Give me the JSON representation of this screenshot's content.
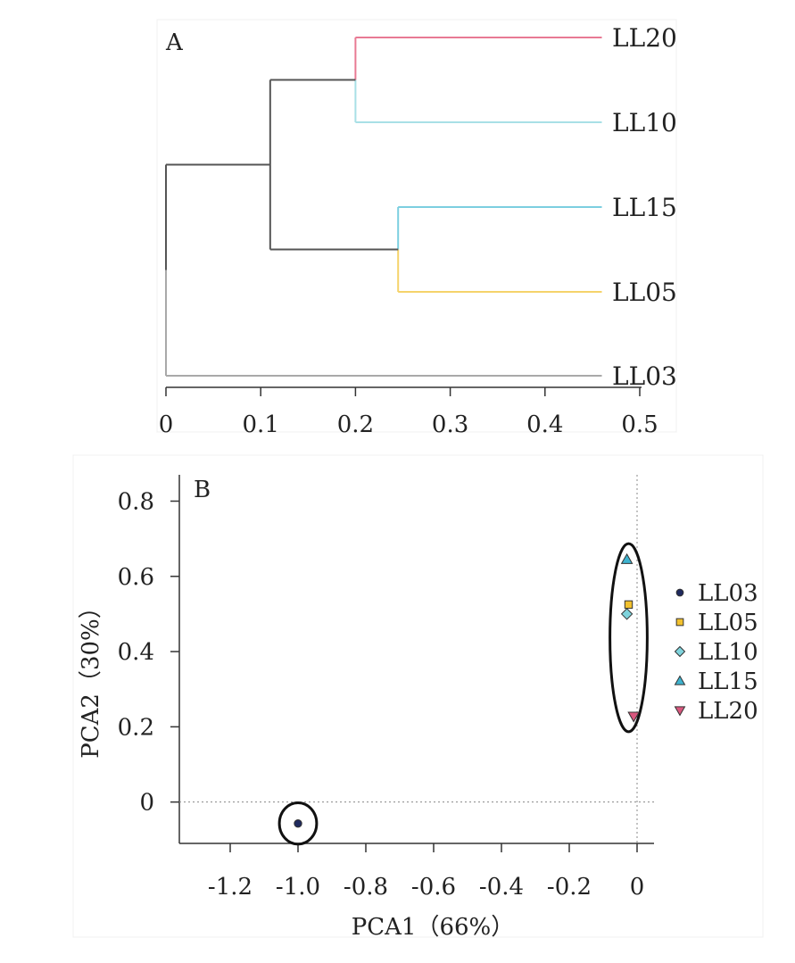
{
  "chart_data": [
    {
      "type": "dendrogram",
      "panel_label": "A",
      "leaves": [
        "LL20",
        "LL10",
        "LL15",
        "LL05",
        "LL03"
      ],
      "leaf_colors": [
        "#e87a94",
        "#a8e0e6",
        "#7ccfe0",
        "#f5d36b",
        "#a9a9a9"
      ],
      "merges": [
        {
          "id": "m1",
          "children": [
            "LL20",
            "LL10"
          ],
          "height": 0.2
        },
        {
          "id": "m2",
          "children": [
            "LL15",
            "LL05"
          ],
          "height": 0.245
        },
        {
          "id": "m3",
          "children": [
            "m1",
            "m2"
          ],
          "height": 0.11
        },
        {
          "id": "root",
          "children": [
            "m3",
            "LL03"
          ],
          "height": 0.0
        }
      ],
      "leaf_height": 0.46,
      "xlim": [
        0,
        0.5
      ],
      "xticks": [
        0,
        0.1,
        0.2,
        0.3,
        0.4,
        0.5
      ],
      "xtick_labels": [
        "0",
        "0.1",
        "0.2",
        "0.3",
        "0.4",
        "0.5"
      ]
    },
    {
      "type": "scatter",
      "panel_label": "B",
      "xlabel": "PCA1（66%）",
      "ylabel": "PCA2（30%）",
      "xlim": [
        -1.35,
        0.05
      ],
      "ylim": [
        -0.11,
        0.87
      ],
      "xticks": [
        -1.2,
        -1.0,
        -0.8,
        -0.6,
        -0.4,
        -0.2,
        0
      ],
      "xtick_labels": [
        "-1.2",
        "-1.0",
        "-0.8",
        "-0.6",
        "-0.4",
        "-0.2",
        "0"
      ],
      "yticks": [
        0,
        0.2,
        0.4,
        0.6,
        0.8
      ],
      "ytick_labels": [
        "0",
        "0.2",
        "0.4",
        "0.6",
        "0.8"
      ],
      "reference_lines": {
        "x": 0,
        "y": 0
      },
      "series": [
        {
          "name": "LL03",
          "marker": "circle",
          "color": "#1f2a5e",
          "points": [
            [
              -1.0,
              -0.057
            ]
          ]
        },
        {
          "name": "LL05",
          "marker": "square",
          "color": "#f2c12e",
          "points": [
            [
              -0.025,
              0.525
            ]
          ]
        },
        {
          "name": "LL10",
          "marker": "diamond",
          "color": "#7fd3dc",
          "points": [
            [
              -0.03,
              0.5
            ]
          ]
        },
        {
          "name": "LL15",
          "marker": "triangle-up",
          "color": "#3eb3cf",
          "points": [
            [
              -0.03,
              0.645
            ]
          ]
        },
        {
          "name": "LL20",
          "marker": "triangle-down",
          "color": "#d9577e",
          "points": [
            [
              -0.01,
              0.228
            ]
          ]
        }
      ],
      "ellipses": [
        {
          "cx": -1.0,
          "cy": -0.057,
          "rx": 0.055,
          "ry": 0.055
        },
        {
          "cx": -0.025,
          "cy": 0.437,
          "rx": 0.055,
          "ry": 0.25
        }
      ],
      "legend_position": "right"
    }
  ]
}
